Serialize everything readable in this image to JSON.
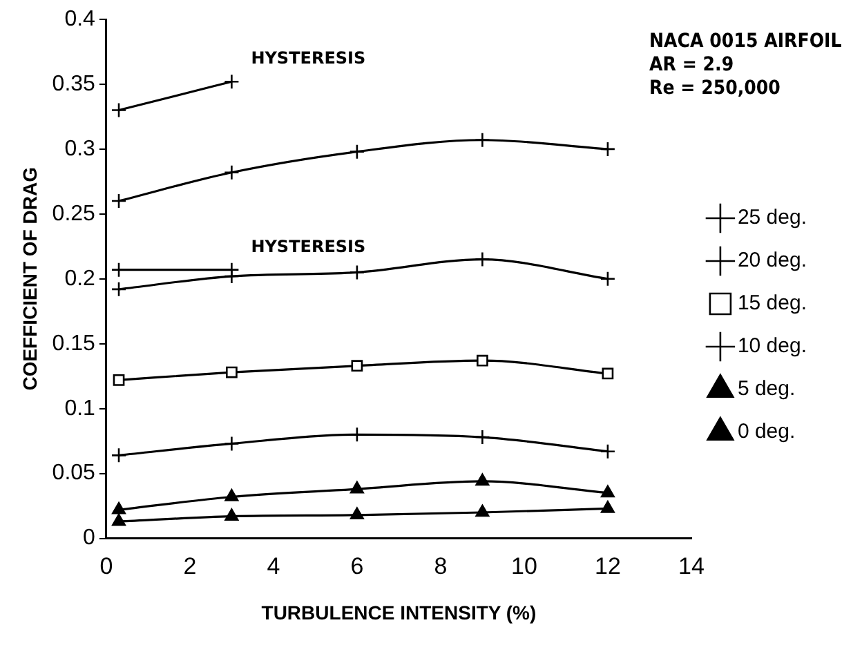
{
  "chart_data": {
    "type": "line",
    "xlabel": "TURBULENCE INTENSITY (%)",
    "ylabel": "COEFFICIENT OF DRAG",
    "xlim": [
      0,
      14
    ],
    "xticks": [
      0,
      2,
      4,
      6,
      8,
      10,
      12,
      14
    ],
    "ylim": [
      0,
      0.4
    ],
    "yticks": [
      0,
      0.05,
      0.1,
      0.15,
      0.2,
      0.25,
      0.3,
      0.35,
      0.4
    ],
    "grid": false,
    "legend": "right",
    "annotations": [
      "NACA 0015 AIRFOIL",
      "AR = 2.9",
      "Re = 250,000",
      "HYSTERESIS",
      "HYSTERESIS"
    ],
    "series": [
      {
        "name": "25 deg.",
        "color": "#000000",
        "marker": "cross",
        "x": [
          0.3,
          3,
          6,
          9,
          12
        ],
        "values": [
          0.26,
          0.282,
          0.298,
          0.307,
          0.3
        ]
      },
      {
        "name": "20 deg.",
        "color": "#000000",
        "marker": "cross",
        "x": [
          0.3,
          3,
          6,
          9,
          12
        ],
        "values": [
          0.192,
          0.202,
          0.205,
          0.215,
          0.2
        ]
      },
      {
        "name": "15 deg.",
        "color": "#000000",
        "marker": "square",
        "x": [
          0.3,
          3,
          6,
          9,
          12
        ],
        "values": [
          0.122,
          0.128,
          0.133,
          0.137,
          0.127
        ]
      },
      {
        "name": "10 deg.",
        "color": "#000000",
        "marker": "cross",
        "x": [
          0.3,
          3,
          6,
          9,
          12
        ],
        "values": [
          0.064,
          0.073,
          0.08,
          0.078,
          0.067
        ]
      },
      {
        "name": "5 deg.",
        "color": "#000000",
        "marker": "triangle",
        "x": [
          0.3,
          3,
          6,
          9,
          12
        ],
        "values": [
          0.022,
          0.032,
          0.038,
          0.044,
          0.035
        ]
      },
      {
        "name": "0 deg.",
        "color": "#000000",
        "marker": "triangle",
        "x": [
          0.3,
          3,
          6,
          9,
          12
        ],
        "values": [
          0.013,
          0.017,
          0.018,
          0.02,
          0.023
        ]
      },
      {
        "color": "#000000",
        "marker": "cross",
        "x": [
          0.3,
          3
        ],
        "values": [
          0.33,
          0.352
        ]
      },
      {
        "color": "#000000",
        "marker": "cross",
        "x": [
          0.3,
          3
        ],
        "values": [
          0.207,
          0.207
        ]
      }
    ]
  }
}
